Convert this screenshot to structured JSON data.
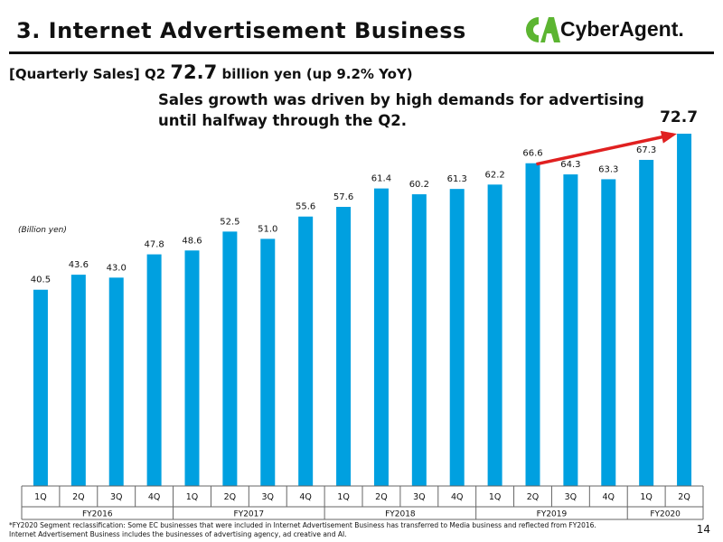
{
  "header": {
    "title": "3. Internet Advertisement Business",
    "logo_text": "CyberAgent."
  },
  "summary": {
    "bracket": "[Quarterly Sales]",
    "quarter": "Q2",
    "value": "72.7",
    "value_suffix": "billion yen (up",
    "yoy": "9.2",
    "yoy_suffix": "% YoY)",
    "line1": "Sales growth was driven by high demands for advertising",
    "line2": "until halfway through the Q2."
  },
  "chart_data": {
    "type": "bar",
    "unit_label": "(Billion yen)",
    "categories": [
      "1Q",
      "2Q",
      "3Q",
      "4Q",
      "1Q",
      "2Q",
      "3Q",
      "4Q",
      "1Q",
      "2Q",
      "3Q",
      "4Q",
      "1Q",
      "2Q",
      "3Q",
      "4Q",
      "1Q",
      "2Q"
    ],
    "values": [
      40.5,
      43.6,
      43.0,
      47.8,
      48.6,
      52.5,
      51.0,
      55.6,
      57.6,
      61.4,
      60.2,
      61.3,
      62.2,
      66.6,
      64.3,
      63.3,
      67.3,
      72.7
    ],
    "fiscal_years": [
      {
        "label": "FY2016",
        "start": 0,
        "end": 3
      },
      {
        "label": "FY2017",
        "start": 4,
        "end": 7
      },
      {
        "label": "FY2018",
        "start": 8,
        "end": 11
      },
      {
        "label": "FY2019",
        "start": 12,
        "end": 15
      },
      {
        "label": "FY2020",
        "start": 16,
        "end": 17
      }
    ],
    "highlight_label": "72.7",
    "arrow": {
      "from_index": 13,
      "to_index": 17
    },
    "ylim": [
      0,
      80
    ],
    "colors": {
      "bar": "#00a0e0",
      "arrow": "#e02020",
      "axis": "#666666"
    }
  },
  "footnote": {
    "line1": "*FY2020 Segment reclassification: Some EC businesses that were included in Internet Advertisement Business has transferred to Media business and reflected from FY2016.",
    "line2": "Internet Advertisement Business includes the businesses of advertising agency, ad creative and AI."
  },
  "page_number": "14",
  "colors": {
    "logo_green": "#5cb531"
  }
}
